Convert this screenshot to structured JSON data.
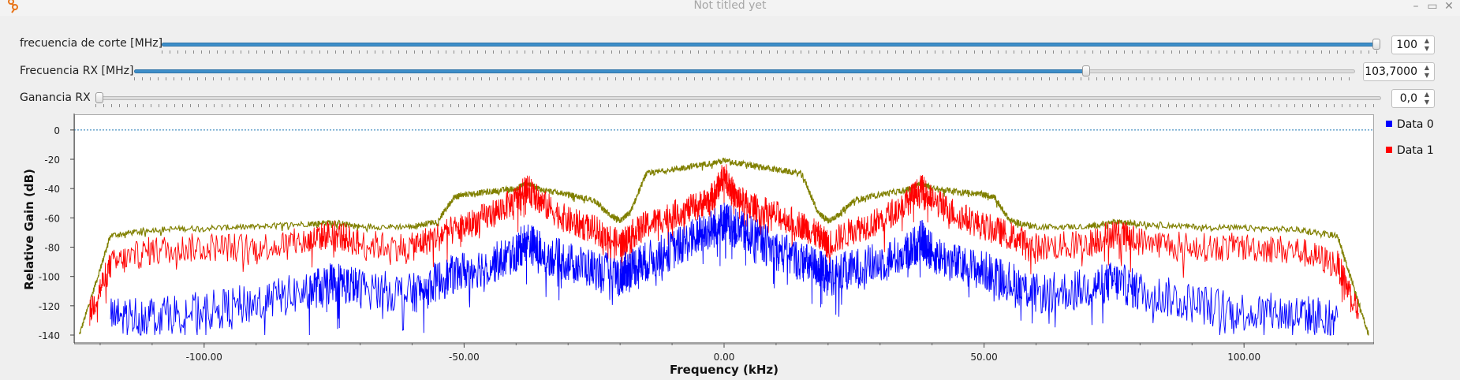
{
  "window": {
    "title": "Not titled yet"
  },
  "controls": [
    {
      "label": "frecuencia de corte [MHz]",
      "value_text": "100",
      "fraction": 1.0
    },
    {
      "label": "Frecuencia RX [MHz]",
      "value_text": "103,7000",
      "fraction": 0.78
    },
    {
      "label": "Ganancia RX",
      "value_text": "0,0",
      "fraction": 0.0
    }
  ],
  "colors": {
    "series0": "#0000ff",
    "series1": "#ff0000",
    "series2": "#808000",
    "slider_fill": "#3d8ec9",
    "reference_line": "#1f77b4"
  },
  "chart_data": {
    "type": "line",
    "xlabel": "Frequency (kHz)",
    "ylabel": "Relative Gain (dB)",
    "xlim": [
      -125,
      125
    ],
    "ylim": [
      -140,
      8
    ],
    "x_ticks": [
      "-100.00",
      "-50.00",
      "0.00",
      "50.00",
      "100.00"
    ],
    "y_ticks": [
      "0",
      "-20",
      "-40",
      "-60",
      "-80",
      "-100",
      "-120",
      "-140"
    ],
    "reference_line_y": 0,
    "legend_position": "right",
    "series": [
      {
        "name": "Data 0",
        "color": "#0000ff",
        "x": [
          -118,
          -110,
          -100,
          -90,
          -80,
          -75,
          -70,
          -60,
          -55,
          -50,
          -45,
          -40,
          -38,
          -35,
          -30,
          -25,
          -20,
          -18,
          -15,
          -10,
          -5,
          -2,
          0,
          2,
          5,
          10,
          15,
          18,
          20,
          25,
          30,
          35,
          38,
          40,
          45,
          50,
          55,
          60,
          70,
          75,
          80,
          90,
          100,
          110,
          118
        ],
        "y": [
          -128,
          -126,
          -124,
          -118,
          -110,
          -103,
          -108,
          -112,
          -103,
          -96,
          -92,
          -84,
          -75,
          -84,
          -90,
          -95,
          -100,
          -94,
          -90,
          -82,
          -72,
          -67,
          -62,
          -67,
          -72,
          -82,
          -90,
          -94,
          -100,
          -95,
          -90,
          -84,
          -75,
          -84,
          -92,
          -96,
          -103,
          -112,
          -108,
          -103,
          -110,
          -118,
          -124,
          -126,
          -128
        ]
      },
      {
        "name": "Data 1",
        "color": "#ff0000",
        "x": [
          -122,
          -118,
          -110,
          -100,
          -90,
          -80,
          -75,
          -70,
          -60,
          -55,
          -50,
          -45,
          -40,
          -38,
          -35,
          -30,
          -25,
          -20,
          -18,
          -15,
          -10,
          -5,
          -2,
          0,
          2,
          5,
          10,
          15,
          18,
          20,
          25,
          30,
          35,
          38,
          40,
          45,
          50,
          55,
          60,
          70,
          75,
          80,
          90,
          100,
          110,
          118,
          122
        ],
        "y": [
          -125,
          -92,
          -82,
          -80,
          -80,
          -76,
          -70,
          -78,
          -80,
          -72,
          -66,
          -58,
          -48,
          -40,
          -50,
          -62,
          -68,
          -78,
          -72,
          -65,
          -58,
          -52,
          -45,
          -30,
          -45,
          -52,
          -58,
          -65,
          -72,
          -78,
          -68,
          -62,
          -50,
          -40,
          -48,
          -58,
          -66,
          -72,
          -80,
          -78,
          -70,
          -76,
          -80,
          -80,
          -82,
          -92,
          -125
        ]
      },
      {
        "name": "",
        "color": "#808000",
        "x": [
          -124,
          -120,
          -118,
          -110,
          -100,
          -90,
          -80,
          -75,
          -70,
          -60,
          -55,
          -52,
          -50,
          -45,
          -40,
          -38,
          -35,
          -30,
          -25,
          -22,
          -20,
          -18,
          -15,
          -10,
          -5,
          0,
          5,
          10,
          15,
          18,
          20,
          22,
          25,
          30,
          35,
          38,
          40,
          45,
          50,
          52,
          55,
          60,
          70,
          75,
          80,
          90,
          100,
          110,
          118,
          120,
          124
        ],
        "y": [
          -140,
          -95,
          -72,
          -68,
          -67,
          -66,
          -64,
          -63,
          -66,
          -66,
          -62,
          -46,
          -44,
          -42,
          -40,
          -36,
          -41,
          -44,
          -48,
          -58,
          -62,
          -56,
          -30,
          -27,
          -24,
          -21,
          -24,
          -27,
          -30,
          -56,
          -62,
          -58,
          -48,
          -44,
          -41,
          -36,
          -40,
          -42,
          -44,
          -46,
          -62,
          -66,
          -66,
          -63,
          -64,
          -66,
          -67,
          -68,
          -72,
          -95,
          -140
        ]
      }
    ]
  }
}
